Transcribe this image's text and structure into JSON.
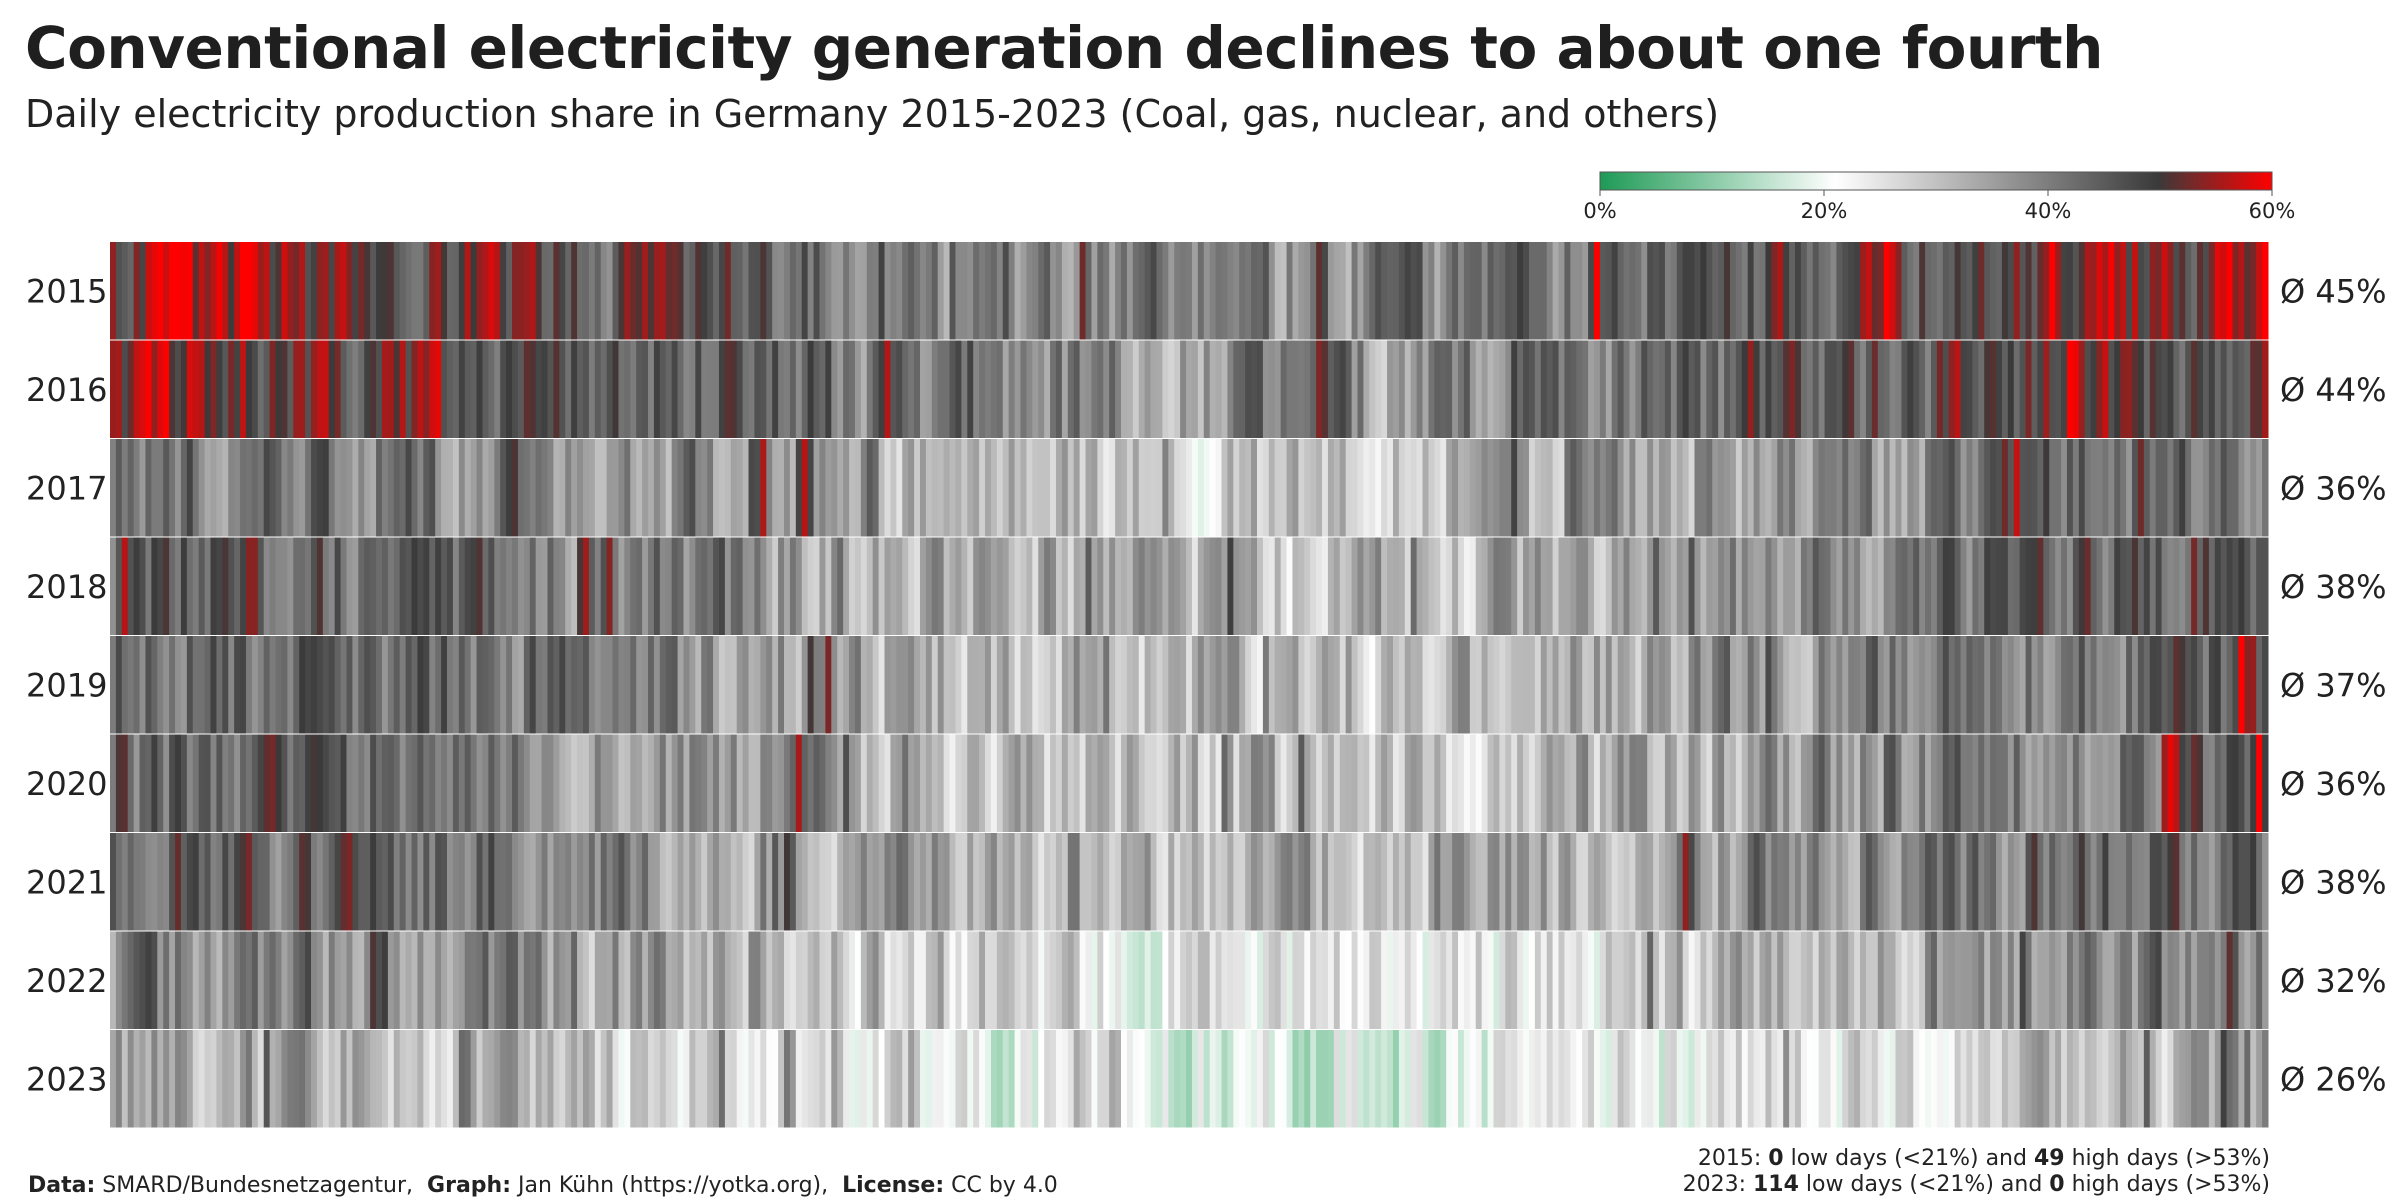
{
  "chart_data": {
    "type": "heatmap",
    "title": "Conventional electricity generation declines to about one fourth",
    "subtitle": "Daily electricity production share in Germany 2015-2023 (Coal, gas, nuclear, and others)",
    "rows": [
      "2015",
      "2016",
      "2017",
      "2018",
      "2019",
      "2020",
      "2021",
      "2022",
      "2023"
    ],
    "averages": [
      45,
      44,
      36,
      38,
      37,
      36,
      38,
      32,
      26
    ],
    "averages_text": [
      "Ø 45%",
      "Ø 44%",
      "Ø 36%",
      "Ø 38%",
      "Ø 37%",
      "Ø 36%",
      "Ø 38%",
      "Ø 32%",
      "Ø 26%"
    ],
    "value_range": [
      0,
      60
    ],
    "colorscale": [
      "#1e9a55",
      "#ffffff",
      "#3a3a3a",
      "#ff0000"
    ],
    "legend": {
      "placement": "top-right",
      "ticks": [
        "0%",
        "20%",
        "40%",
        "60%"
      ]
    },
    "x_resolution": "daily"
  },
  "footer": {
    "data_label": "Data:",
    "data_value": "SMARD/Bundesnetzagentur,",
    "graph_label": "Graph:",
    "graph_value": "Jan Kühn (https://yotka.org),",
    "license_label": "License:",
    "license_value": "CC by 4.0"
  },
  "summary": {
    "line1": {
      "year": "2015:",
      "low": "0",
      "low_text": "low days (<21%) and",
      "high": "49",
      "high_text": "high days (>53%)"
    },
    "line2": {
      "year": "2023:",
      "low": "114",
      "low_text": "low days (<21%) and",
      "high": "0",
      "high_text": "high days (>53%)"
    }
  }
}
